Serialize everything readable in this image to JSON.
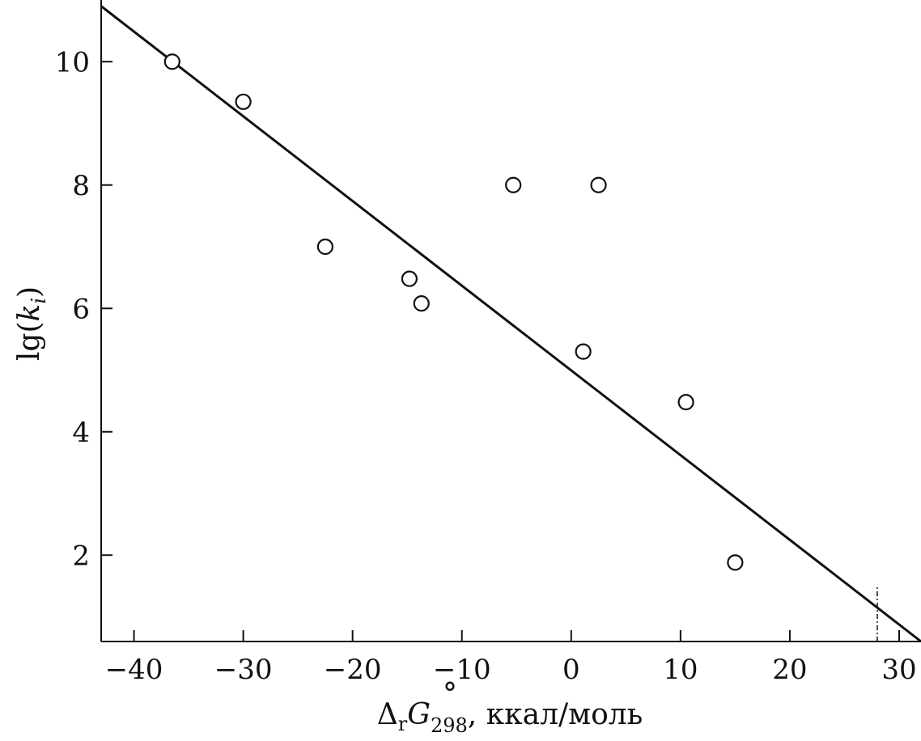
{
  "chart_data": {
    "type": "scatter",
    "title": "",
    "xlabel": "ΔrG°298, ккал/моль",
    "ylabel": "lg(ki)",
    "xlim": [
      -43,
      32
    ],
    "ylim": [
      0.6,
      11
    ],
    "x_ticks": [
      -40,
      -30,
      -20,
      -10,
      0,
      10,
      20,
      30
    ],
    "x_tick_labels": [
      "−40",
      "−30",
      "−20",
      "−10",
      "0",
      "10",
      "20",
      "30"
    ],
    "y_ticks": [
      2,
      4,
      6,
      8,
      10
    ],
    "y_tick_labels": [
      "2",
      "4",
      "6",
      "8",
      "10"
    ],
    "grid": false,
    "legend": "none",
    "series": [
      {
        "points": [
          {
            "x": -36.5,
            "y": 10.0
          },
          {
            "x": -30.0,
            "y": 9.35
          },
          {
            "x": -22.5,
            "y": 7.0
          },
          {
            "x": -14.8,
            "y": 6.48
          },
          {
            "x": -13.7,
            "y": 6.08
          },
          {
            "x": -5.3,
            "y": 8.0
          },
          {
            "x": 1.1,
            "y": 5.3
          },
          {
            "x": 2.5,
            "y": 8.0
          },
          {
            "x": 10.5,
            "y": 4.48
          },
          {
            "x": 15.0,
            "y": 1.88
          }
        ]
      }
    ],
    "fit_line": {
      "x": [
        -43,
        32
      ],
      "y": [
        10.9,
        0.6
      ]
    },
    "vertical_marker": {
      "x": 28,
      "y_range": [
        0.6,
        1.5
      ],
      "style": "dash-dot"
    }
  }
}
